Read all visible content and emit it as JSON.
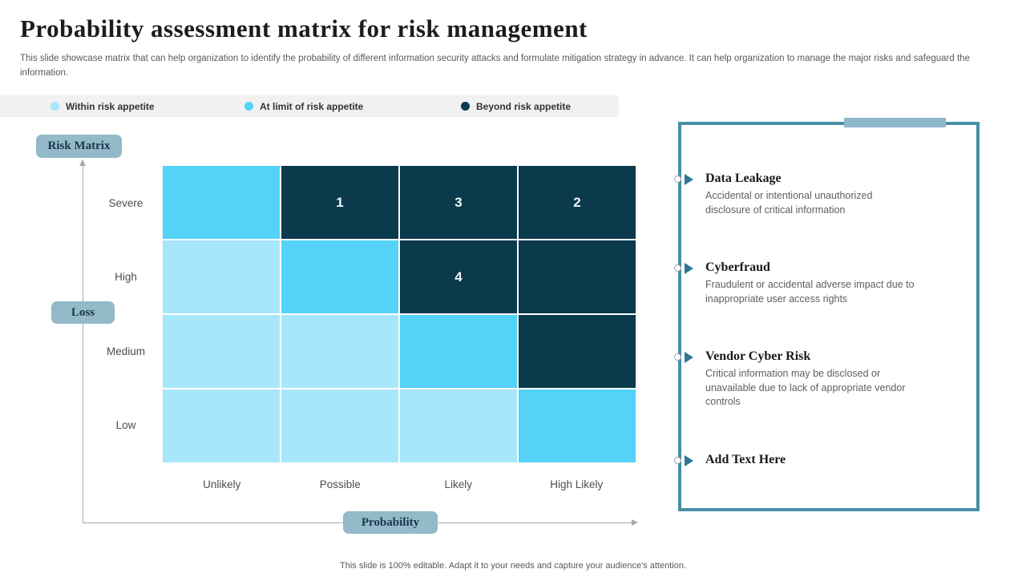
{
  "slide": {
    "title": "Probability assessment matrix for risk management",
    "subtitle": "This slide showcase matrix that can help organization to identify the probability of different information security attacks and formulate mitigation strategy in advance. It can help organization to manage the major risks and safeguard the information.",
    "footer": "This slide is 100% editable. Adapt it to your needs and capture your audience's attention."
  },
  "legend": {
    "items": [
      {
        "label": "Within risk appetite",
        "color": "#a8e6fb"
      },
      {
        "label": "At limit of risk appetite",
        "color": "#54d2f7"
      },
      {
        "label": "Beyond risk appetite",
        "color": "#0a3a4c"
      }
    ]
  },
  "labels": {
    "risk_matrix": "Risk Matrix",
    "loss": "Loss",
    "probability": "Probability"
  },
  "chart_data": {
    "type": "heatmap",
    "title": "Risk Matrix",
    "xlabel": "Probability",
    "ylabel": "Loss",
    "columns": [
      "Unlikely",
      "Possible",
      "Likely",
      "High Likely"
    ],
    "rows": [
      "Severe",
      "High",
      "Medium",
      "Low"
    ],
    "levels": {
      "within": {
        "label": "Within risk appetite",
        "color": "#a8e6fb"
      },
      "at_limit": {
        "label": "At limit of risk appetite",
        "color": "#54d2f7"
      },
      "beyond": {
        "label": "Beyond risk appetite",
        "color": "#0a3a4c"
      }
    },
    "cells": [
      [
        {
          "level": "at_limit",
          "value": ""
        },
        {
          "level": "beyond",
          "value": "1"
        },
        {
          "level": "beyond",
          "value": "3"
        },
        {
          "level": "beyond",
          "value": "2"
        }
      ],
      [
        {
          "level": "within",
          "value": ""
        },
        {
          "level": "at_limit",
          "value": ""
        },
        {
          "level": "beyond",
          "value": "4"
        },
        {
          "level": "beyond",
          "value": ""
        }
      ],
      [
        {
          "level": "within",
          "value": ""
        },
        {
          "level": "within",
          "value": ""
        },
        {
          "level": "at_limit",
          "value": ""
        },
        {
          "level": "beyond",
          "value": ""
        }
      ],
      [
        {
          "level": "within",
          "value": ""
        },
        {
          "level": "within",
          "value": ""
        },
        {
          "level": "within",
          "value": ""
        },
        {
          "level": "at_limit",
          "value": ""
        }
      ]
    ]
  },
  "panel": {
    "items": [
      {
        "title": "Data Leakage",
        "description": "Accidental or intentional unauthorized disclosure of critical information"
      },
      {
        "title": "Cyberfraud",
        "description": "Fraudulent or accidental adverse impact due to inappropriate user access rights"
      },
      {
        "title": "Vendor Cyber Risk",
        "description": "Critical information may be disclosed or unavailable due to lack of appropriate vendor controls"
      },
      {
        "title": "Add Text Here",
        "description": ""
      }
    ]
  },
  "colors": {
    "badge_bg": "#94b9c8",
    "panel_border": "#4790a8",
    "panel_tab": "#8cb8ca",
    "axis": "#a9a9a9",
    "legend_bar_bg": "#f1f1f2"
  }
}
